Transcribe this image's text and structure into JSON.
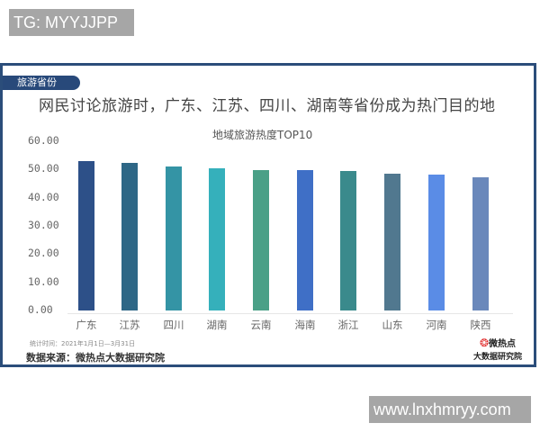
{
  "watermarks": {
    "top": "TG: MYYJJPP",
    "bottom": "www.lnxhmryy.com"
  },
  "card": {
    "tag": "旅游省份",
    "headline": "网民讨论旅游时，广东、江苏、四川、湖南等省份成为热门目的地",
    "note": "统计时间：2021年1月1日—3月31日",
    "source": "数据来源：微热点大数据研究院",
    "logo_line1": "微热点",
    "logo_line2": "大数据研究院",
    "colors": {
      "frame": "#2b4d7a",
      "tag_bg": "#28497a"
    }
  },
  "chart_data": {
    "type": "bar",
    "title": "地域旅游热度TOP10",
    "xlabel": "",
    "ylabel": "",
    "ylim": [
      0,
      60
    ],
    "yticks": [
      "60.00",
      "50.00",
      "40.00",
      "30.00",
      "20.00",
      "10.00",
      "0.00"
    ],
    "grid": false,
    "legend": "none",
    "categories": [
      "广东",
      "江苏",
      "四川",
      "湖南",
      "云南",
      "海南",
      "浙江",
      "山东",
      "河南",
      "陕西"
    ],
    "values": [
      53.0,
      52.4,
      51.1,
      50.5,
      49.8,
      49.8,
      49.5,
      48.6,
      48.2,
      47.3
    ],
    "colors": [
      "#2d5088",
      "#2e6786",
      "#3494a5",
      "#35b0bb",
      "#4aa087",
      "#3f6fc6",
      "#3a8a8c",
      "#51788f",
      "#5a8ce6",
      "#6a88bb"
    ]
  }
}
